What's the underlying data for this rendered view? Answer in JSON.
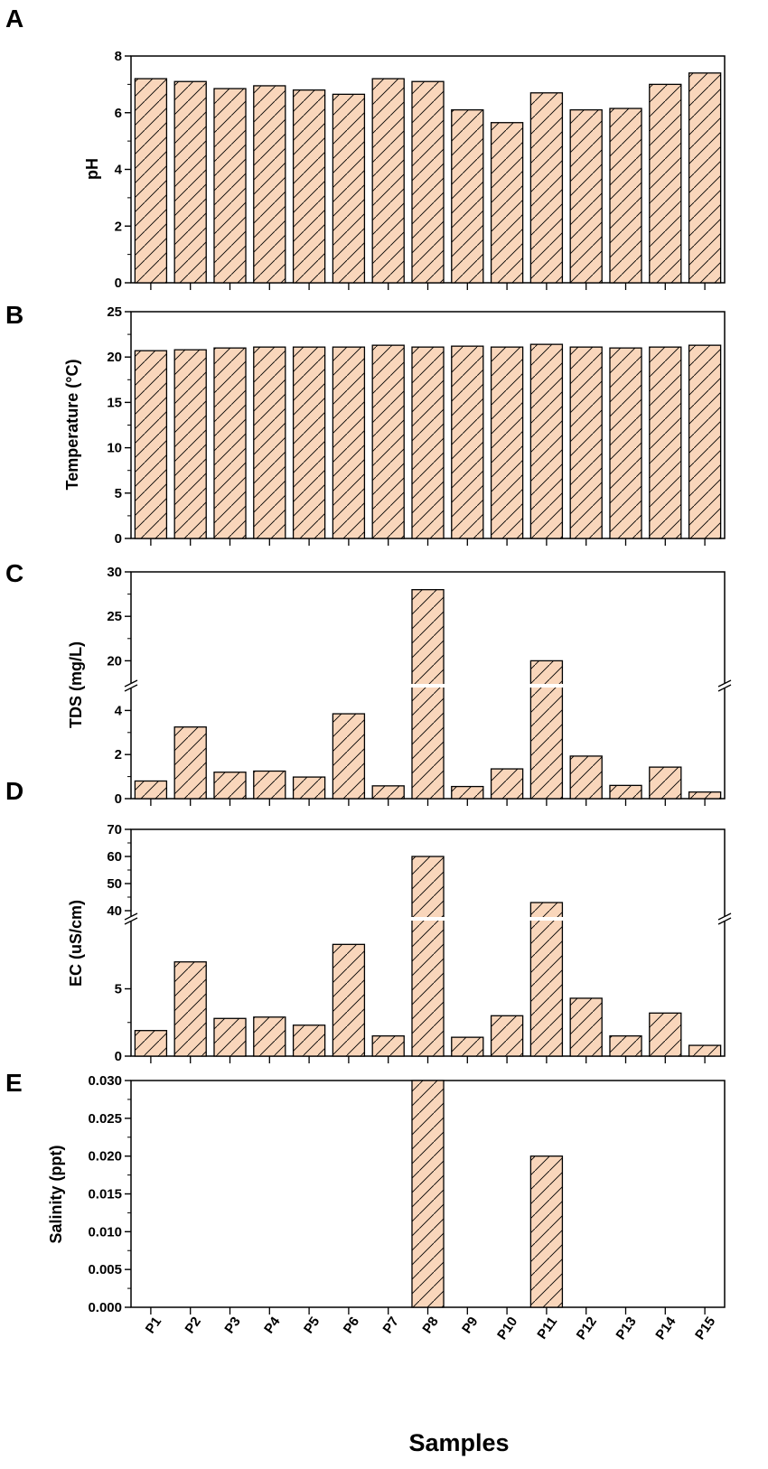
{
  "chart_data": {
    "type": "bar",
    "categories": [
      "P1",
      "P2",
      "P3",
      "P4",
      "P5",
      "P6",
      "P7",
      "P8",
      "P9",
      "P10",
      "P11",
      "P12",
      "P13",
      "P14",
      "P15"
    ],
    "xlabel": "Samples",
    "colors": {
      "bar_fill": "#f9d6bb",
      "bar_stroke": "#000000",
      "hatch": "#000000"
    },
    "panels": [
      {
        "label": "A",
        "ylabel": "pH",
        "ylim": [
          0,
          8
        ],
        "yticks": [
          "0",
          "2",
          "4",
          "6",
          "8"
        ],
        "values": [
          7.2,
          7.1,
          6.85,
          6.95,
          6.8,
          6.65,
          7.2,
          7.1,
          6.1,
          5.65,
          6.7,
          6.1,
          6.15,
          7.0,
          7.4
        ]
      },
      {
        "label": "B",
        "ylabel": "Temperature (°C)",
        "ylim": [
          0,
          25
        ],
        "yticks": [
          "0",
          "5",
          "10",
          "15",
          "20",
          "25"
        ],
        "values": [
          20.7,
          20.8,
          21.0,
          21.1,
          21.1,
          21.1,
          21.3,
          21.1,
          21.2,
          21.1,
          21.4,
          21.1,
          21.0,
          21.1,
          21.3
        ]
      },
      {
        "label": "C",
        "ylabel": "TDS (mg/L)",
        "broken_axis": {
          "lower": [
            0,
            5
          ],
          "upper": [
            17.5,
            30
          ]
        },
        "yticks_lower": [
          "0",
          "2",
          "4"
        ],
        "yticks_upper": [
          "20",
          "25",
          "30"
        ],
        "values": [
          0.8,
          3.25,
          1.2,
          1.25,
          0.98,
          3.85,
          0.58,
          28.0,
          0.55,
          1.35,
          20.0,
          1.93,
          0.6,
          1.43,
          0.3
        ]
      },
      {
        "label": "D",
        "ylabel": "EC (uS/cm)",
        "broken_axis": {
          "lower": [
            0,
            10
          ],
          "upper": [
            38,
            70
          ]
        },
        "yticks_lower": [
          "0",
          "5"
        ],
        "yticks_upper": [
          "40",
          "50",
          "60",
          "70"
        ],
        "values": [
          1.9,
          7.0,
          2.8,
          2.9,
          2.3,
          8.3,
          1.5,
          60.0,
          1.4,
          3.0,
          43.0,
          4.3,
          1.5,
          3.2,
          0.8
        ]
      },
      {
        "label": "E",
        "ylabel": "Salinity (ppt)",
        "ylim": [
          0,
          0.03
        ],
        "yticks": [
          "0.000",
          "0.005",
          "0.010",
          "0.015",
          "0.020",
          "0.025",
          "0.030"
        ],
        "values": [
          0,
          0,
          0,
          0,
          0,
          0,
          0,
          0.03,
          0,
          0,
          0.02,
          0,
          0,
          0,
          0
        ]
      }
    ]
  }
}
